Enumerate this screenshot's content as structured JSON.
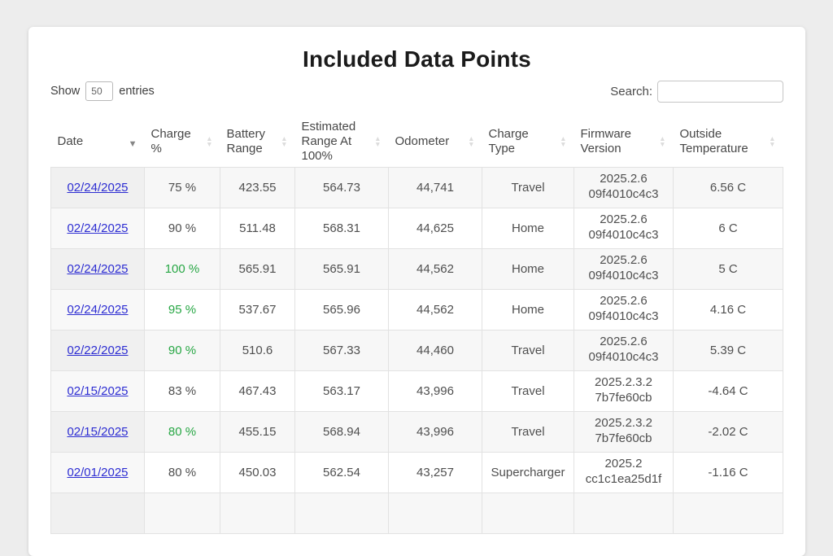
{
  "title": "Included Data Points",
  "controls": {
    "show_prefix": "Show",
    "show_value": "50",
    "show_suffix": "entries",
    "search_label": "Search:",
    "search_value": ""
  },
  "table": {
    "columns": [
      {
        "label": "Date",
        "sort": "desc"
      },
      {
        "label": "Charge\n%",
        "sort": "both"
      },
      {
        "label": "Battery\nRange",
        "sort": "both"
      },
      {
        "label": "Estimated\nRange At\n100%",
        "sort": "both"
      },
      {
        "label": "Odometer",
        "sort": "both"
      },
      {
        "label": "Charge\nType",
        "sort": "both"
      },
      {
        "label": "Firmware\nVersion",
        "sort": "both"
      },
      {
        "label": "Outside\nTemperature",
        "sort": "both"
      }
    ],
    "rows": [
      {
        "date": "02/24/2025",
        "charge": "75 %",
        "charge_highlight": false,
        "battery_range": "423.55",
        "est_range": "564.73",
        "odometer": "44,741",
        "charge_type": "Travel",
        "firmware": "2025.2.6\n09f4010c4c3",
        "temperature": "6.56 C"
      },
      {
        "date": "02/24/2025",
        "charge": "90 %",
        "charge_highlight": false,
        "battery_range": "511.48",
        "est_range": "568.31",
        "odometer": "44,625",
        "charge_type": "Home",
        "firmware": "2025.2.6\n09f4010c4c3",
        "temperature": "6 C"
      },
      {
        "date": "02/24/2025",
        "charge": "100 %",
        "charge_highlight": true,
        "battery_range": "565.91",
        "est_range": "565.91",
        "odometer": "44,562",
        "charge_type": "Home",
        "firmware": "2025.2.6\n09f4010c4c3",
        "temperature": "5 C"
      },
      {
        "date": "02/24/2025",
        "charge": "95 %",
        "charge_highlight": true,
        "battery_range": "537.67",
        "est_range": "565.96",
        "odometer": "44,562",
        "charge_type": "Home",
        "firmware": "2025.2.6\n09f4010c4c3",
        "temperature": "4.16 C"
      },
      {
        "date": "02/22/2025",
        "charge": "90 %",
        "charge_highlight": true,
        "battery_range": "510.6",
        "est_range": "567.33",
        "odometer": "44,460",
        "charge_type": "Travel",
        "firmware": "2025.2.6\n09f4010c4c3",
        "temperature": "5.39 C"
      },
      {
        "date": "02/15/2025",
        "charge": "83 %",
        "charge_highlight": false,
        "battery_range": "467.43",
        "est_range": "563.17",
        "odometer": "43,996",
        "charge_type": "Travel",
        "firmware": "2025.2.3.2\n7b7fe60cb",
        "temperature": "-4.64 C"
      },
      {
        "date": "02/15/2025",
        "charge": "80 %",
        "charge_highlight": true,
        "battery_range": "455.15",
        "est_range": "568.94",
        "odometer": "43,996",
        "charge_type": "Travel",
        "firmware": "2025.2.3.2\n7b7fe60cb",
        "temperature": "-2.02 C"
      },
      {
        "date": "02/01/2025",
        "charge": "80 %",
        "charge_highlight": false,
        "battery_range": "450.03",
        "est_range": "562.54",
        "odometer": "43,257",
        "charge_type": "Supercharger",
        "firmware": "2025.2\ncc1c1ea25d1f",
        "temperature": "-1.16 C"
      },
      {
        "date": "",
        "charge": "",
        "charge_highlight": false,
        "battery_range": "",
        "est_range": "",
        "odometer": "",
        "charge_type": "",
        "firmware": "",
        "temperature": ""
      }
    ]
  },
  "colors": {
    "link_blue": "#2d2dd2",
    "charge_green": "#28a745"
  }
}
